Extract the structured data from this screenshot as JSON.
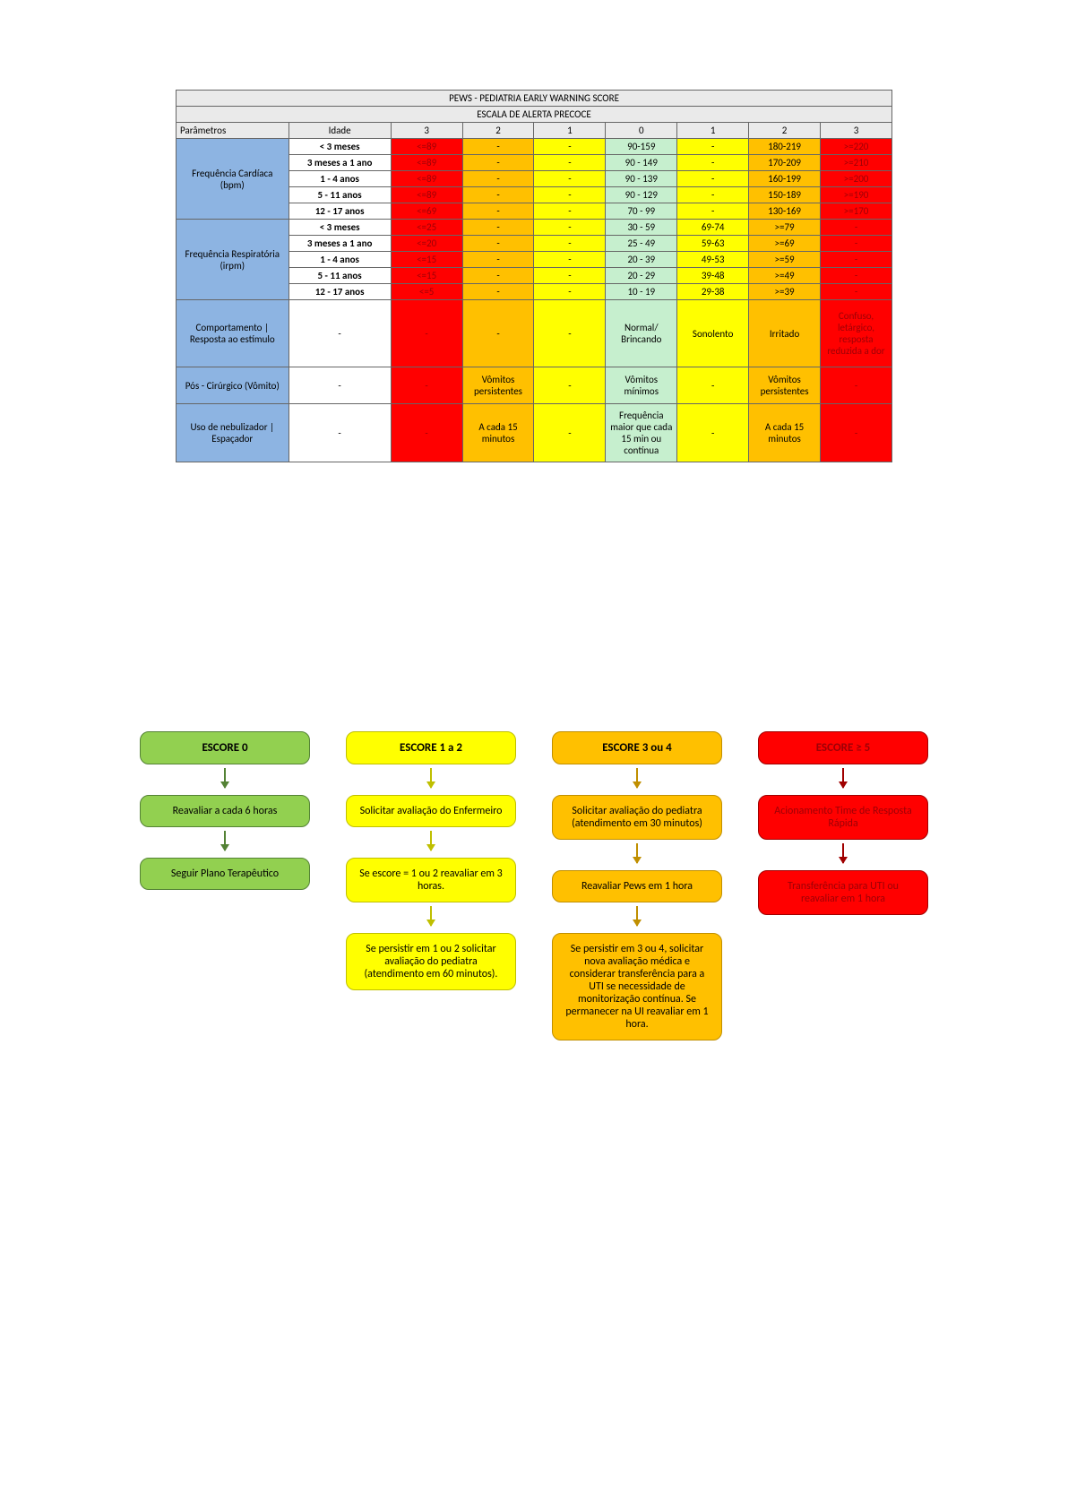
{
  "colors": {
    "param_header": "#8db4e2",
    "header_bg": "#eaeaea",
    "red": "#ff0000",
    "orange": "#ffc000",
    "yellow": "#ffff00",
    "green": "#c6efce",
    "green_node": "#92d050",
    "green_node_border": "#548235",
    "yellow_node": "#ffff00",
    "yellow_node_border": "#bfbf00",
    "orange_flow": "#ffc000",
    "orange_flow_border": "#c08f00",
    "red_flow": "#ff0000",
    "red_flow_border": "#a00000",
    "red_text": "#9c0006"
  },
  "table": {
    "title": "PEWS - PEDIATRIA EARLY WARNING SCORE",
    "subtitle": "ESCALA DE ALERTA PRECOCE",
    "header": [
      "Parâmetros",
      "Idade",
      "3",
      "2",
      "1",
      "0",
      "1",
      "2",
      "3"
    ],
    "col_colors": {
      "score3L": "red",
      "score2L": "orange",
      "score1L": "yellow",
      "score0": "green",
      "score1R": "yellow",
      "score2R": "orange",
      "score3R": "red"
    },
    "rows_fc": {
      "param": "Frequência Cardíaca (bpm)",
      "ages": [
        "< 3 meses",
        "3 meses a 1 ano",
        "1 - 4 anos",
        "5 - 11 anos",
        "12 - 17 anos"
      ],
      "cells": [
        [
          "<=89",
          "-",
          "-",
          "90-159",
          "-",
          "180-219",
          ">=220"
        ],
        [
          "<=89",
          "-",
          "-",
          "90 - 149",
          "-",
          "170-209",
          ">=210"
        ],
        [
          "<=89",
          "-",
          "-",
          "90 - 139",
          "-",
          "160-199",
          ">=200"
        ],
        [
          "<=89",
          "-",
          "-",
          "90 - 129",
          "-",
          "150-189",
          ">=190"
        ],
        [
          "<=69",
          "-",
          "-",
          "70 - 99",
          "-",
          "130-169",
          ">=170"
        ]
      ]
    },
    "rows_fr": {
      "param": "Frequência Respiratória (irpm)",
      "ages": [
        "< 3 meses",
        "3 meses a 1 ano",
        "1 - 4 anos",
        "5 - 11 anos",
        "12 - 17 anos"
      ],
      "cells": [
        [
          "<=25",
          "-",
          "-",
          "30 - 59",
          "69-74",
          ">=79",
          "-"
        ],
        [
          "<=20",
          "-",
          "-",
          "25 - 49",
          "59-63",
          ">=69",
          "-"
        ],
        [
          "<=15",
          "-",
          "-",
          "20 - 39",
          "49-53",
          ">=59",
          "-"
        ],
        [
          "<=15",
          "-",
          "-",
          "20 - 29",
          "39-48",
          ">=49",
          "-"
        ],
        [
          "<=5",
          "-",
          "-",
          "10 - 19",
          "29-38",
          ">=39",
          "-"
        ]
      ]
    },
    "row_comport": {
      "param": "Comportamento | Resposta ao estímulo",
      "age": "-",
      "cells": [
        "-",
        "-",
        "-",
        "Normal/ Brincando",
        "Sonolento",
        "Irritado",
        "Confuso, letárgico, resposta reduzida a dor"
      ]
    },
    "row_pos": {
      "param": "Pós - Cirúrgico (Vômito)",
      "age": "-",
      "cells": [
        "-",
        "Vômitos persistentes",
        "-",
        "Vômitos mínimos",
        "-",
        "Vômitos persistentes",
        "-"
      ]
    },
    "row_neb": {
      "param": "Uso de nebulizador | Espaçador",
      "age": "-",
      "cells": [
        "-",
        "A cada 15 minutos",
        "-",
        "Frequência maior que cada 15 min ou contínua",
        "-",
        "A cada 15 minutos",
        "-"
      ]
    }
  },
  "flow": {
    "cols": [
      {
        "color": "green",
        "title": "ESCORE 0",
        "nodes": [
          "Reavaliar a cada 6 horas",
          "Seguir Plano Terapêutico"
        ]
      },
      {
        "color": "yellow",
        "title": "ESCORE 1 a 2",
        "nodes": [
          "Solicitar avaliação do Enfermeiro",
          "Se escore = 1 ou 2 reavaliar em 3 horas.",
          "Se persistir em 1 ou 2 solicitar avaliação do pediatra (atendimento em 60 minutos)."
        ]
      },
      {
        "color": "orange",
        "title": "ESCORE 3 ou 4",
        "nodes": [
          "Solicitar avaliação do pediatra (atendimento em 30 minutos)",
          "Reavaliar Pews em 1 hora",
          "Se persistir em 3 ou 4, solicitar nova avaliação médica e considerar transferência para a UTI se necessidade de monitorização contínua. Se permanecer na UI reavaliar em 1 hora."
        ]
      },
      {
        "color": "red",
        "title": "ESCORE ≥ 5",
        "nodes": [
          "Acionamento Time de Resposta Rápida",
          "Transferência para UTI ou reavaliar em 1 hora"
        ]
      }
    ]
  }
}
